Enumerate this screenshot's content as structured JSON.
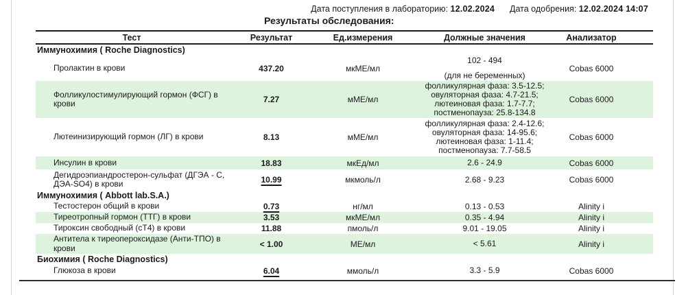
{
  "header": {
    "received_label": "Дата поступления в лабораторию:",
    "received_value": "12.02.2024",
    "approved_label": "Дата одобрения:",
    "approved_value": "12.02.2024 14:07",
    "title": "Результаты обследования:"
  },
  "table": {
    "columns": {
      "test": "Тест",
      "result": "Результат",
      "units": "Ед.измерения",
      "reference": "Должные значения",
      "analyzer": "Анализатор"
    }
  },
  "sections": [
    {
      "title": "Иммунохимия ( Roche Diagnostics)",
      "rows": [
        {
          "test": "Пролактин в крови",
          "result": "437.20",
          "units": "мкМЕ/мл",
          "ref_lines": [
            "102 - 494",
            "(для не беременных)"
          ],
          "analyzer": "Cobas 6000",
          "out_of_range": false
        },
        {
          "test": "Фолликулостимулирующий гормон (ФСГ) в крови",
          "result": "7.27",
          "units": "мМЕ/мл",
          "ref_lines": [
            "фолликулярная фаза: 3.5-12.5;",
            "овуляторная фаза: 4.7-21.5;",
            "лютеиновая фаза: 1.7-7.7;",
            "постменопауза: 25.8-134.8"
          ],
          "analyzer": "Cobas 6000",
          "out_of_range": false
        },
        {
          "test": "Лютеинизирующий гормон (ЛГ) в крови",
          "result": "8.13",
          "units": "мМЕ/мл",
          "ref_lines": [
            "фолликулярная фаза: 2.4-12.6;",
            "овуляторная фаза: 14-95.6;",
            "лютеиновая фаза: 1-11.4;",
            "постменопауза: 7.7-58.5"
          ],
          "analyzer": "Cobas 6000",
          "out_of_range": false
        },
        {
          "test": "Инсулин в крови",
          "result": "18.83",
          "units": "мкЕд/мл",
          "ref_lines": [
            "2.6 - 24.9"
          ],
          "analyzer": "Cobas 6000",
          "out_of_range": false
        },
        {
          "test": "Дегидроэпиандростерон-сульфат (ДГЭА - С, ДЭА-SO4) в крови",
          "result": "10.99",
          "units": "мкмоль/л",
          "ref_lines": [
            "2.68 - 9.23"
          ],
          "analyzer": "Cobas 6000",
          "out_of_range": true
        }
      ]
    },
    {
      "title": "Иммунохимия ( Abbott lab.S.A.)",
      "rows": [
        {
          "test": "Тестостерон общий в крови",
          "result": "0.73",
          "units": "нг/мл",
          "ref_lines": [
            "0.13 - 0.53"
          ],
          "analyzer": "Alinity i",
          "out_of_range": true
        },
        {
          "test": "Тиреотропный гормон (ТТГ) в крови",
          "result": "3.53",
          "units": "мкМЕ/мл",
          "ref_lines": [
            "0.35 - 4.94"
          ],
          "analyzer": "Alinity i",
          "out_of_range": false
        },
        {
          "test": "Тироксин свободный (сТ4) в крови",
          "result": "11.88",
          "units": "пмоль/л",
          "ref_lines": [
            "9.01 - 19.05"
          ],
          "analyzer": "Alinity i",
          "out_of_range": false
        },
        {
          "test": "Антитела к тиреопероксидазе (Анти-ТПО) в крови",
          "result": "< 1.00",
          "units": "МЕ/мл",
          "ref_lines": [
            "< 5.61"
          ],
          "analyzer": "Alinity i",
          "out_of_range": false
        }
      ]
    },
    {
      "title": "Биохимия ( Roche Diagnostics)",
      "rows": [
        {
          "test": "Глюкоза в крови",
          "result": "6.04",
          "units": "ммоль/л",
          "ref_lines": [
            "3.3 - 5.9"
          ],
          "analyzer": "Cobas 6000",
          "out_of_range": true
        }
      ]
    }
  ],
  "colors": {
    "row_highlight": "#ddf3de",
    "table_border": "#1c1c1c",
    "page_margin": "#ededf1"
  }
}
